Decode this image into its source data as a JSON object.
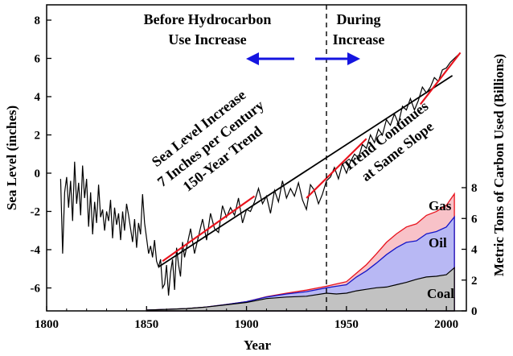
{
  "chart_data": {
    "type": "line",
    "xlabel": "Year",
    "ylabel": "Sea Level (inches)",
    "y2label": "Metric Tons of Carbon Used (Billions)",
    "xlim": [
      1800,
      2010
    ],
    "ylim": [
      -7.2,
      8.8
    ],
    "y2lim": [
      0,
      8
    ],
    "x_ticks": [
      1800,
      1850,
      1900,
      1950,
      2000
    ],
    "y_ticks": [
      -6,
      -4,
      -2,
      0,
      2,
      4,
      6,
      8
    ],
    "y2_ticks": [
      0,
      2,
      4,
      6,
      8
    ],
    "divider_year": 1940,
    "annotations": {
      "before": [
        "Before Hydrocarbon",
        "Use Increase"
      ],
      "during": [
        "During",
        "Increase"
      ],
      "trend": [
        "Sea Level Increase",
        "7 Inches per Century",
        "150-Year Trend"
      ],
      "continues": [
        "Trend Continues",
        "at Same Slope"
      ]
    },
    "sea_level": {
      "x": [
        1807,
        1808,
        1809,
        1810,
        1811,
        1812,
        1813,
        1814,
        1815,
        1816,
        1817,
        1818,
        1819,
        1820,
        1821,
        1822,
        1823,
        1824,
        1825,
        1826,
        1827,
        1828,
        1829,
        1830,
        1831,
        1832,
        1833,
        1834,
        1835,
        1836,
        1837,
        1838,
        1839,
        1840,
        1841,
        1842,
        1843,
        1844,
        1845,
        1846,
        1847,
        1848,
        1849,
        1850,
        1851,
        1852,
        1853,
        1854,
        1855,
        1856,
        1857,
        1858,
        1859,
        1860,
        1861,
        1862,
        1863,
        1864,
        1865,
        1866,
        1867,
        1868,
        1869,
        1870,
        1872,
        1874,
        1876,
        1878,
        1880,
        1882,
        1884,
        1886,
        1888,
        1890,
        1892,
        1894,
        1896,
        1898,
        1900,
        1902,
        1904,
        1906,
        1908,
        1910,
        1912,
        1914,
        1916,
        1918,
        1920,
        1922,
        1924,
        1926,
        1928,
        1930,
        1932,
        1934,
        1936,
        1938,
        1940,
        1942,
        1944,
        1946,
        1948,
        1950,
        1952,
        1954,
        1956,
        1958,
        1960,
        1962,
        1964,
        1966,
        1968,
        1970,
        1972,
        1974,
        1976,
        1978,
        1980,
        1982,
        1984,
        1986,
        1988,
        1990,
        1992,
        1994,
        1996,
        1998,
        2000,
        2002,
        2004,
        2006
      ],
      "y": [
        -0.3,
        -4.2,
        -1.0,
        -0.2,
        -1.8,
        -0.4,
        -2.5,
        0.6,
        -1.6,
        -0.5,
        -2.2,
        0.4,
        -1.3,
        -0.3,
        -2.8,
        -1.0,
        -3.2,
        -1.5,
        -2.6,
        -0.6,
        -2.3,
        -1.9,
        -3.0,
        -2.0,
        -2.5,
        -1.4,
        -3.4,
        -1.8,
        -2.7,
        -2.1,
        -3.5,
        -2.0,
        -3.0,
        -1.6,
        -2.2,
        -2.9,
        -3.6,
        -2.4,
        -3.9,
        -2.6,
        -3.2,
        -1.1,
        -2.6,
        -3.4,
        -4.2,
        -3.8,
        -4.4,
        -3.5,
        -4.6,
        -4.9,
        -4.5,
        -6.0,
        -5.8,
        -4.8,
        -6.4,
        -5.2,
        -4.5,
        -6.1,
        -3.9,
        -4.8,
        -5.4,
        -3.6,
        -4.4,
        -3.9,
        -2.9,
        -4.2,
        -3.3,
        -2.4,
        -3.5,
        -2.1,
        -2.9,
        -3.1,
        -1.7,
        -2.3,
        -1.8,
        -2.2,
        -1.3,
        -2.6,
        -1.9,
        -2.0,
        -1.5,
        -0.8,
        -1.6,
        -1.2,
        -2.1,
        -0.9,
        -1.5,
        -0.4,
        -1.3,
        -0.8,
        -1.2,
        -0.5,
        -1.4,
        -1.9,
        -0.6,
        -0.9,
        -1.6,
        -1.1,
        -0.4,
        -0.2,
        0.3,
        -0.3,
        0.5,
        0.0,
        0.6,
        1.0,
        0.8,
        1.5,
        1.3,
        2.0,
        1.6,
        2.3,
        2.0,
        2.8,
        2.5,
        3.1,
        2.6,
        3.5,
        3.3,
        3.9,
        3.3,
        3.8,
        4.5,
        4.2,
        4.5,
        5.0,
        4.8,
        5.4,
        5.5,
        5.8,
        6.0,
        6.2
      ]
    },
    "fits": [
      {
        "x": [
          1856,
          2003
        ],
        "y": [
          -4.9,
          5.1
        ]
      },
      {
        "x": [
          1858,
          1904
        ],
        "y": [
          -4.6,
          -1.2
        ]
      },
      {
        "x": [
          1930,
          1960
        ],
        "y": [
          -1.3,
          1.8
        ]
      },
      {
        "x": [
          1987,
          2007
        ],
        "y": [
          3.6,
          6.3
        ]
      }
    ],
    "carbon": {
      "x": [
        1850,
        1860,
        1870,
        1880,
        1890,
        1900,
        1910,
        1920,
        1930,
        1940,
        1945,
        1950,
        1955,
        1960,
        1965,
        1970,
        1975,
        1980,
        1985,
        1990,
        1995,
        2000,
        2004
      ],
      "coal": [
        0.05,
        0.1,
        0.15,
        0.25,
        0.4,
        0.55,
        0.8,
        0.9,
        0.95,
        1.15,
        1.1,
        1.15,
        1.3,
        1.4,
        1.5,
        1.55,
        1.7,
        1.85,
        2.05,
        2.2,
        2.25,
        2.35,
        2.8
      ],
      "oil": [
        0.0,
        0.0,
        0.0,
        0.0,
        0.02,
        0.05,
        0.1,
        0.2,
        0.3,
        0.35,
        0.5,
        0.55,
        0.9,
        1.2,
        1.6,
        2.1,
        2.4,
        2.6,
        2.5,
        2.8,
        2.9,
        3.1,
        3.3
      ],
      "gas": [
        0.0,
        0.0,
        0.0,
        0.0,
        0.0,
        0.0,
        0.02,
        0.05,
        0.1,
        0.1,
        0.15,
        0.2,
        0.25,
        0.4,
        0.6,
        0.8,
        0.9,
        1.0,
        1.1,
        1.2,
        1.3,
        1.4,
        1.5
      ],
      "labels": {
        "gas": "Gas",
        "oil": "Oil",
        "coal": "Coal"
      }
    }
  }
}
